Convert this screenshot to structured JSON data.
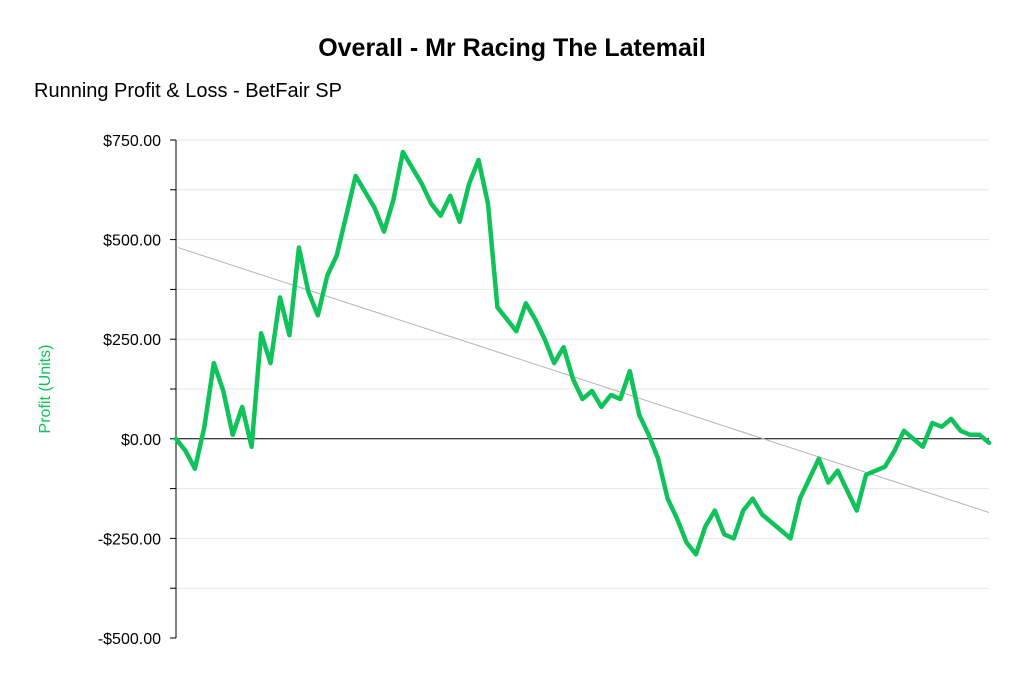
{
  "colors": {
    "series": "#0fc35a",
    "trend": "#b4b4b4",
    "grid": "#e6e6e6",
    "axis": "#000000"
  },
  "chart_data": {
    "type": "line",
    "title": "Overall - Mr Racing The Latemail",
    "subtitle": "Running Profit & Loss - BetFair SP",
    "ylabel": "Profit (Units)",
    "xlabel": "",
    "ylim": [
      -500,
      750
    ],
    "yticks": [
      750,
      500,
      250,
      0,
      -250,
      -500
    ],
    "ytick_labels": [
      "$750.00",
      "$500.00",
      "$250.00",
      "$0.00",
      "-$250.00",
      "-$500.00"
    ],
    "grid": true,
    "legend": "none",
    "x_range": [
      0,
      1
    ],
    "series": [
      {
        "values": [
          0,
          -30,
          -75,
          30,
          190,
          120,
          10,
          80,
          -20,
          265,
          190,
          355,
          260,
          480,
          370,
          310,
          410,
          460,
          560,
          660,
          620,
          580,
          520,
          600,
          720,
          680,
          640,
          590,
          560,
          610,
          545,
          640,
          700,
          590,
          330,
          300,
          270,
          340,
          300,
          250,
          190,
          230,
          150,
          100,
          120,
          80,
          110,
          100,
          170,
          60,
          10,
          -50,
          -150,
          -200,
          -260,
          -290,
          -220,
          -180,
          -240,
          -250,
          -180,
          -150,
          -190,
          -210,
          -230,
          -250,
          -150,
          -100,
          -50,
          -110,
          -80,
          -130,
          -180,
          -90,
          -80,
          -70,
          -30,
          20,
          0,
          -20,
          40,
          30,
          50,
          20,
          10,
          10,
          -10
        ]
      },
      {
        "name": "",
        "values": [
          480,
          -185
        ]
      }
    ]
  }
}
